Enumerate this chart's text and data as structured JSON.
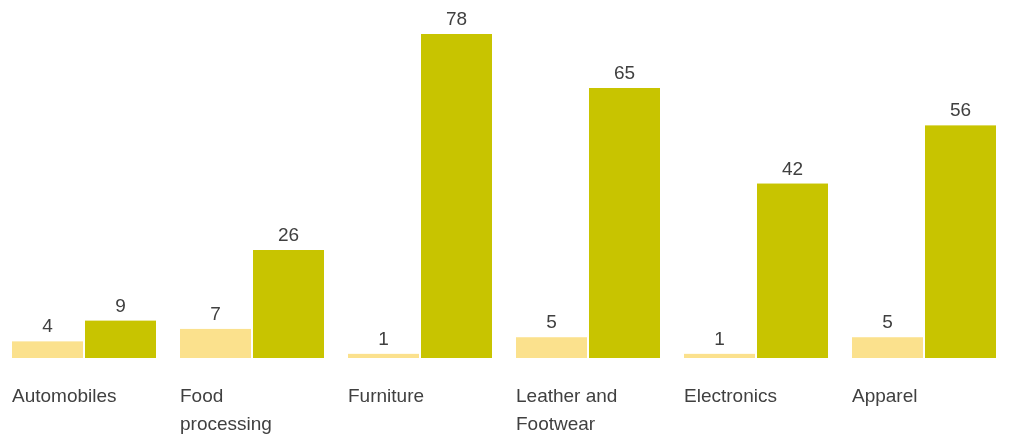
{
  "chart_data": {
    "type": "bar",
    "categories": [
      "Automobiles",
      "Food processing",
      "Furniture",
      "Leather and Footwear",
      "Electronics",
      "Apparel"
    ],
    "series": [
      {
        "color": "#fbe18d",
        "values": [
          4,
          7,
          1,
          5,
          1,
          5
        ]
      },
      {
        "color": "#c8c400",
        "values": [
          9,
          26,
          78,
          65,
          42,
          56
        ]
      }
    ],
    "data_labels": true
  }
}
